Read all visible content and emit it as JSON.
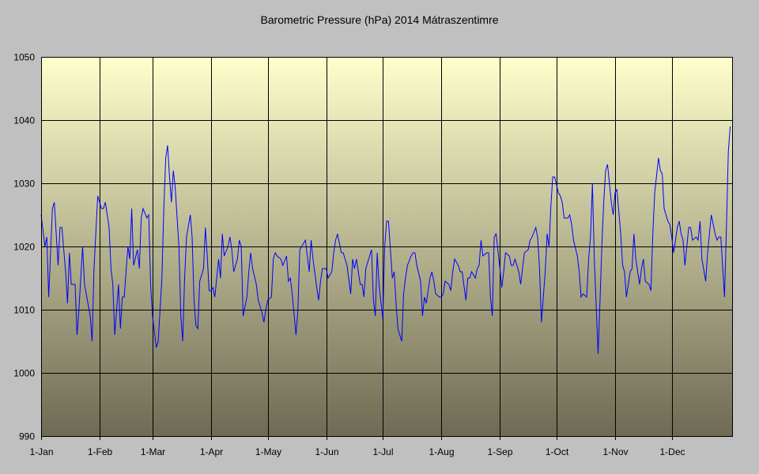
{
  "chart_data": {
    "type": "line",
    "title": "Barometric Pressure (hPa) 2014 Mátraszentimre",
    "xlabel": "",
    "ylabel": "",
    "x_unit": "day of year (0 = 1-Jan)",
    "xlim": [
      0,
      366
    ],
    "ylim": [
      990,
      1050
    ],
    "yticks": [
      990,
      1000,
      1010,
      1020,
      1030,
      1040,
      1050
    ],
    "xticks": [
      {
        "day": 0,
        "label": "1-Jan"
      },
      {
        "day": 31,
        "label": "1-Feb"
      },
      {
        "day": 59,
        "label": "1-Mar"
      },
      {
        "day": 90,
        "label": "1-Apr"
      },
      {
        "day": 120,
        "label": "1-May"
      },
      {
        "day": 151,
        "label": "1-Jun"
      },
      {
        "day": 181,
        "label": "1-Jul"
      },
      {
        "day": 212,
        "label": "1-Aug"
      },
      {
        "day": 243,
        "label": "1-Sep"
      },
      {
        "day": 273,
        "label": "1-Oct"
      },
      {
        "day": 304,
        "label": "1-Nov"
      },
      {
        "day": 334,
        "label": "1-Dec"
      }
    ],
    "grid": true,
    "legend": "none",
    "series": [
      {
        "name": "Pressure",
        "color": "#0000ff",
        "points": [
          [
            0,
            1025
          ],
          [
            2,
            1020
          ],
          [
            3,
            1021.5
          ],
          [
            4,
            1012
          ],
          [
            6,
            1026
          ],
          [
            7,
            1027
          ],
          [
            9,
            1017
          ],
          [
            10,
            1023
          ],
          [
            11,
            1023
          ],
          [
            13,
            1016
          ],
          [
            14,
            1011
          ],
          [
            15,
            1019
          ],
          [
            16,
            1014
          ],
          [
            18,
            1014
          ],
          [
            19,
            1006
          ],
          [
            20,
            1010
          ],
          [
            22,
            1020
          ],
          [
            23,
            1014
          ],
          [
            26,
            1009
          ],
          [
            27,
            1005
          ],
          [
            28,
            1016.5
          ],
          [
            30,
            1028
          ],
          [
            32,
            1026
          ],
          [
            33,
            1026
          ],
          [
            34,
            1027
          ],
          [
            36,
            1023
          ],
          [
            37,
            1016.5
          ],
          [
            38,
            1014
          ],
          [
            39,
            1006
          ],
          [
            41,
            1014
          ],
          [
            42,
            1007
          ],
          [
            43,
            1012
          ],
          [
            44,
            1012
          ],
          [
            46,
            1020
          ],
          [
            47,
            1018
          ],
          [
            48,
            1026
          ],
          [
            49,
            1017
          ],
          [
            51,
            1019.5
          ],
          [
            52,
            1016.5
          ],
          [
            53,
            1024.5
          ],
          [
            54,
            1026
          ],
          [
            56,
            1024.5
          ],
          [
            57,
            1025
          ],
          [
            58,
            1014
          ],
          [
            59,
            1009
          ],
          [
            61,
            1004
          ],
          [
            62,
            1005
          ],
          [
            64,
            1015
          ],
          [
            65,
            1026
          ],
          [
            66,
            1034
          ],
          [
            67,
            1036
          ],
          [
            68,
            1031
          ],
          [
            69,
            1027
          ],
          [
            70,
            1032
          ],
          [
            71,
            1029.5
          ],
          [
            73,
            1020
          ],
          [
            74,
            1009
          ],
          [
            75,
            1005
          ],
          [
            76,
            1015
          ],
          [
            77,
            1021.5
          ],
          [
            79,
            1025
          ],
          [
            80,
            1021.5
          ],
          [
            81,
            1011.5
          ],
          [
            82,
            1007.5
          ],
          [
            83,
            1007
          ],
          [
            84,
            1014.5
          ],
          [
            86,
            1016.5
          ],
          [
            87,
            1023
          ],
          [
            88,
            1018.5
          ],
          [
            89,
            1013
          ],
          [
            90,
            1013
          ],
          [
            91,
            1013.5
          ],
          [
            92,
            1012
          ],
          [
            94,
            1018
          ],
          [
            95,
            1015
          ],
          [
            96,
            1022
          ],
          [
            97,
            1018.5
          ],
          [
            99,
            1020
          ],
          [
            100,
            1021.5
          ],
          [
            101,
            1019.5
          ],
          [
            102,
            1016
          ],
          [
            104,
            1018
          ],
          [
            105,
            1021
          ],
          [
            106,
            1020
          ],
          [
            107,
            1009
          ],
          [
            109,
            1012
          ],
          [
            110,
            1016
          ],
          [
            111,
            1019
          ],
          [
            112,
            1016.5
          ],
          [
            114,
            1014
          ],
          [
            115,
            1011.5
          ],
          [
            117,
            1009.5
          ],
          [
            118,
            1008
          ],
          [
            119,
            1010
          ],
          [
            120,
            1011.5
          ],
          [
            122,
            1012
          ],
          [
            123,
            1018
          ],
          [
            124,
            1019
          ],
          [
            125,
            1018.5
          ],
          [
            127,
            1018
          ],
          [
            128,
            1017
          ],
          [
            130,
            1018.5
          ],
          [
            131,
            1014.5
          ],
          [
            132,
            1015
          ],
          [
            133,
            1012.5
          ],
          [
            135,
            1006
          ],
          [
            136,
            1010
          ],
          [
            137,
            1019.5
          ],
          [
            138,
            1020
          ],
          [
            140,
            1021
          ],
          [
            141,
            1018.5
          ],
          [
            142,
            1016
          ],
          [
            143,
            1021
          ],
          [
            144,
            1018
          ],
          [
            146,
            1013.5
          ],
          [
            147,
            1011.5
          ],
          [
            148,
            1014.5
          ],
          [
            149,
            1016.5
          ],
          [
            151,
            1016.5
          ],
          [
            152,
            1015
          ],
          [
            154,
            1016
          ],
          [
            155,
            1019
          ],
          [
            156,
            1021
          ],
          [
            157,
            1022
          ],
          [
            159,
            1019
          ],
          [
            160,
            1019
          ],
          [
            161,
            1018
          ],
          [
            162,
            1017
          ],
          [
            164,
            1012.5
          ],
          [
            165,
            1018
          ],
          [
            166,
            1016.5
          ],
          [
            167,
            1018
          ],
          [
            169,
            1014
          ],
          [
            170,
            1014
          ],
          [
            171,
            1012
          ],
          [
            172,
            1016.5
          ],
          [
            174,
            1018.5
          ],
          [
            175,
            1019.5
          ],
          [
            176,
            1011.5
          ],
          [
            177,
            1009
          ],
          [
            178,
            1019
          ],
          [
            179,
            1014
          ],
          [
            181,
            1008.5
          ],
          [
            182,
            1020
          ],
          [
            183,
            1024
          ],
          [
            184,
            1024
          ],
          [
            186,
            1015
          ],
          [
            187,
            1016
          ],
          [
            188,
            1011
          ],
          [
            189,
            1007
          ],
          [
            191,
            1005
          ],
          [
            192,
            1012.5
          ],
          [
            193,
            1015
          ],
          [
            194,
            1017
          ],
          [
            196,
            1018.5
          ],
          [
            197,
            1019
          ],
          [
            198,
            1019
          ],
          [
            199,
            1017
          ],
          [
            201,
            1014.5
          ],
          [
            202,
            1009
          ],
          [
            203,
            1012
          ],
          [
            204,
            1011
          ],
          [
            206,
            1015
          ],
          [
            207,
            1016
          ],
          [
            208,
            1014.5
          ],
          [
            209,
            1012.5
          ],
          [
            211,
            1012
          ],
          [
            212,
            1012
          ],
          [
            213,
            1012.5
          ],
          [
            214,
            1014.5
          ],
          [
            216,
            1014
          ],
          [
            217,
            1013
          ],
          [
            218,
            1016
          ],
          [
            219,
            1018
          ],
          [
            221,
            1017
          ],
          [
            222,
            1016
          ],
          [
            223,
            1016
          ],
          [
            225,
            1011.5
          ],
          [
            226,
            1015
          ],
          [
            227,
            1015
          ],
          [
            228,
            1016
          ],
          [
            230,
            1015
          ],
          [
            231,
            1016.5
          ],
          [
            232,
            1017
          ],
          [
            233,
            1021
          ],
          [
            234,
            1018.5
          ],
          [
            236,
            1019
          ],
          [
            237,
            1019
          ],
          [
            238,
            1012
          ],
          [
            239,
            1009
          ],
          [
            240,
            1021.5
          ],
          [
            241,
            1022
          ],
          [
            243,
            1016.5
          ],
          [
            244,
            1013.5
          ],
          [
            245,
            1016
          ],
          [
            246,
            1019
          ],
          [
            248,
            1018.5
          ],
          [
            249,
            1017
          ],
          [
            250,
            1017
          ],
          [
            251,
            1018
          ],
          [
            253,
            1016
          ],
          [
            254,
            1014
          ],
          [
            255,
            1016.5
          ],
          [
            256,
            1019
          ],
          [
            258,
            1019.5
          ],
          [
            259,
            1021
          ],
          [
            260,
            1021.5
          ],
          [
            262,
            1023
          ],
          [
            263,
            1021.5
          ],
          [
            264,
            1016.5
          ],
          [
            265,
            1008
          ],
          [
            267,
            1016
          ],
          [
            268,
            1022
          ],
          [
            269,
            1020
          ],
          [
            270,
            1026.5
          ],
          [
            271,
            1031
          ],
          [
            272,
            1031
          ],
          [
            274,
            1028.5
          ],
          [
            275,
            1028
          ],
          [
            276,
            1027
          ],
          [
            277,
            1024.5
          ],
          [
            279,
            1024.5
          ],
          [
            280,
            1025
          ],
          [
            281,
            1023.5
          ],
          [
            282,
            1021
          ],
          [
            284,
            1018.5
          ],
          [
            285,
            1016
          ],
          [
            286,
            1012
          ],
          [
            287,
            1012.5
          ],
          [
            289,
            1012
          ],
          [
            290,
            1018
          ],
          [
            291,
            1021.5
          ],
          [
            292,
            1030
          ],
          [
            293,
            1018
          ],
          [
            295,
            1003
          ],
          [
            296,
            1011
          ],
          [
            297,
            1020
          ],
          [
            298,
            1027
          ],
          [
            299,
            1032
          ],
          [
            300,
            1033
          ],
          [
            302,
            1027
          ],
          [
            303,
            1025
          ],
          [
            304,
            1028.5
          ],
          [
            305,
            1029
          ],
          [
            307,
            1022
          ],
          [
            308,
            1017
          ],
          [
            309,
            1016
          ],
          [
            310,
            1012
          ],
          [
            312,
            1016
          ],
          [
            313,
            1016.5
          ],
          [
            314,
            1022
          ],
          [
            315,
            1018
          ],
          [
            317,
            1014
          ],
          [
            318,
            1016.5
          ],
          [
            319,
            1018
          ],
          [
            320,
            1014.5
          ],
          [
            322,
            1014
          ],
          [
            323,
            1013
          ],
          [
            324,
            1022
          ],
          [
            325,
            1028.5
          ],
          [
            327,
            1034
          ],
          [
            328,
            1032
          ],
          [
            329,
            1031.5
          ],
          [
            330,
            1026
          ],
          [
            332,
            1024
          ],
          [
            333,
            1023.5
          ],
          [
            334,
            1021.5
          ],
          [
            335,
            1019
          ],
          [
            337,
            1023
          ],
          [
            338,
            1024
          ],
          [
            339,
            1022
          ],
          [
            340,
            1021
          ],
          [
            341,
            1017
          ],
          [
            343,
            1023
          ],
          [
            344,
            1023
          ],
          [
            345,
            1021
          ],
          [
            347,
            1021.5
          ],
          [
            348,
            1021
          ],
          [
            349,
            1024
          ],
          [
            350,
            1018
          ],
          [
            352,
            1014.5
          ],
          [
            353,
            1019
          ],
          [
            354,
            1022
          ],
          [
            355,
            1025
          ],
          [
            357,
            1022
          ],
          [
            358,
            1021
          ],
          [
            359,
            1021.5
          ],
          [
            360,
            1021.5
          ],
          [
            362,
            1012
          ],
          [
            363,
            1023
          ],
          [
            364,
            1035
          ],
          [
            365,
            1039
          ]
        ]
      }
    ],
    "colors": {
      "page": "#c0c0c0",
      "plot_top": "#ffffcc",
      "plot_bottom": "#6e6a54",
      "line": "#0000ff",
      "grid": "#000000"
    }
  }
}
